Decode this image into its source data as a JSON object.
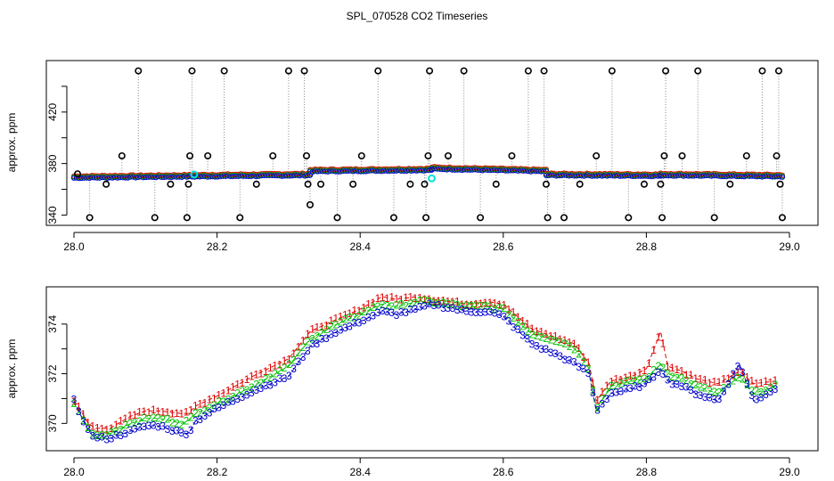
{
  "chart_data": [
    {
      "type": "scatter",
      "title": "SPL_070528  CO2 Timeseries",
      "xlabel": "",
      "ylabel": "approx. ppm",
      "xlim": [
        28.0,
        29.0
      ],
      "ylim": [
        332,
        460
      ],
      "x_ticks": [
        28.0,
        28.2,
        28.4,
        28.6,
        28.8,
        29.0
      ],
      "x_tick_labels": [
        "28.0",
        "28.2",
        "28.4",
        "28.6",
        "28.8",
        "29.0"
      ],
      "y_ticks": [
        340,
        360,
        380,
        400,
        420,
        440
      ],
      "y_tick_labels": [
        "340",
        "",
        "380",
        "",
        "420",
        ""
      ],
      "baseline_segments": [
        {
          "x": [
            28.0,
            28.33
          ],
          "y": [
            369.5,
            371.5
          ]
        },
        {
          "x": [
            28.33,
            28.5
          ],
          "y": [
            374.5,
            375.5
          ]
        },
        {
          "x": [
            28.5,
            28.66
          ],
          "y": [
            376.5,
            374.5
          ]
        },
        {
          "x": [
            28.66,
            28.82
          ],
          "y": [
            371.5,
            371.0
          ]
        },
        {
          "x": [
            28.82,
            28.99
          ],
          "y": [
            371.5,
            370.5
          ]
        }
      ],
      "outliers": [
        {
          "x": 28.005,
          "y": 372
        },
        {
          "x": 28.022,
          "y": 338
        },
        {
          "x": 28.045,
          "y": 364
        },
        {
          "x": 28.067,
          "y": 386
        },
        {
          "x": 28.09,
          "y": 452
        },
        {
          "x": 28.113,
          "y": 338
        },
        {
          "x": 28.135,
          "y": 364
        },
        {
          "x": 28.158,
          "y": 338
        },
        {
          "x": 28.16,
          "y": 364
        },
        {
          "x": 28.162,
          "y": 386
        },
        {
          "x": 28.165,
          "y": 452
        },
        {
          "x": 28.187,
          "y": 386
        },
        {
          "x": 28.21,
          "y": 452
        },
        {
          "x": 28.232,
          "y": 338
        },
        {
          "x": 28.255,
          "y": 364
        },
        {
          "x": 28.278,
          "y": 386
        },
        {
          "x": 28.3,
          "y": 452
        },
        {
          "x": 28.322,
          "y": 452
        },
        {
          "x": 28.325,
          "y": 386
        },
        {
          "x": 28.327,
          "y": 364
        },
        {
          "x": 28.33,
          "y": 348
        },
        {
          "x": 28.345,
          "y": 364
        },
        {
          "x": 28.368,
          "y": 338
        },
        {
          "x": 28.39,
          "y": 364
        },
        {
          "x": 28.402,
          "y": 386
        },
        {
          "x": 28.425,
          "y": 452
        },
        {
          "x": 28.447,
          "y": 338
        },
        {
          "x": 28.47,
          "y": 364
        },
        {
          "x": 28.49,
          "y": 364
        },
        {
          "x": 28.492,
          "y": 338
        },
        {
          "x": 28.495,
          "y": 386
        },
        {
          "x": 28.497,
          "y": 452
        },
        {
          "x": 28.523,
          "y": 386
        },
        {
          "x": 28.545,
          "y": 452
        },
        {
          "x": 28.568,
          "y": 338
        },
        {
          "x": 28.59,
          "y": 364
        },
        {
          "x": 28.612,
          "y": 386
        },
        {
          "x": 28.635,
          "y": 452
        },
        {
          "x": 28.657,
          "y": 452
        },
        {
          "x": 28.66,
          "y": 364
        },
        {
          "x": 28.662,
          "y": 338
        },
        {
          "x": 28.685,
          "y": 338
        },
        {
          "x": 28.707,
          "y": 364
        },
        {
          "x": 28.73,
          "y": 386
        },
        {
          "x": 28.752,
          "y": 452
        },
        {
          "x": 28.775,
          "y": 338
        },
        {
          "x": 28.797,
          "y": 364
        },
        {
          "x": 28.82,
          "y": 364
        },
        {
          "x": 28.822,
          "y": 338
        },
        {
          "x": 28.825,
          "y": 386
        },
        {
          "x": 28.827,
          "y": 452
        },
        {
          "x": 28.85,
          "y": 386
        },
        {
          "x": 28.872,
          "y": 452
        },
        {
          "x": 28.895,
          "y": 338
        },
        {
          "x": 28.917,
          "y": 364
        },
        {
          "x": 28.94,
          "y": 386
        },
        {
          "x": 28.962,
          "y": 452
        },
        {
          "x": 28.982,
          "y": 386
        },
        {
          "x": 28.985,
          "y": 452
        },
        {
          "x": 28.987,
          "y": 364
        },
        {
          "x": 28.99,
          "y": 338
        }
      ],
      "highlights": [
        {
          "x": 28.168,
          "y": 371.5
        },
        {
          "x": 28.5,
          "y": 368.5
        }
      ]
    },
    {
      "type": "line",
      "title": "",
      "xlabel": "",
      "ylabel": "approx. ppm",
      "xlim": [
        28.0,
        29.0
      ],
      "ylim": [
        368.9,
        375.5
      ],
      "x_ticks": [
        28.0,
        28.2,
        28.4,
        28.6,
        28.8,
        29.0
      ],
      "x_tick_labels": [
        "28.0",
        "28.2",
        "28.4",
        "28.6",
        "28.8",
        "29.0"
      ],
      "y_ticks": [
        370,
        371,
        372,
        373,
        374
      ],
      "y_tick_labels": [
        "370",
        "",
        "372",
        "",
        "374"
      ],
      "series": [
        {
          "name": "1",
          "color": "#e00000",
          "x": [
            28.0,
            28.01,
            28.02,
            28.03,
            28.05,
            28.08,
            28.1,
            28.12,
            28.15,
            28.16,
            28.17,
            28.2,
            28.25,
            28.3,
            28.33,
            28.36,
            28.4,
            28.43,
            28.45,
            28.48,
            28.5,
            28.55,
            28.58,
            28.6,
            28.64,
            28.68,
            28.7,
            28.72,
            28.73,
            28.75,
            28.78,
            28.8,
            28.82,
            28.83,
            28.85,
            28.87,
            28.9,
            28.93,
            28.95,
            28.98
          ],
          "y": [
            370.9,
            370.5,
            370.0,
            369.8,
            369.8,
            370.3,
            370.5,
            370.5,
            370.4,
            370.4,
            370.7,
            371.1,
            371.9,
            372.6,
            373.7,
            374.1,
            374.6,
            375.1,
            375.0,
            375.1,
            375.0,
            374.8,
            374.9,
            374.8,
            373.8,
            373.4,
            373.2,
            372.4,
            370.9,
            371.7,
            371.9,
            372.2,
            373.7,
            372.3,
            372.1,
            371.8,
            371.6,
            372.1,
            371.6,
            371.7
          ]
        },
        {
          "name": "2",
          "color": "#00c000",
          "x": [
            28.0,
            28.01,
            28.02,
            28.03,
            28.05,
            28.08,
            28.1,
            28.12,
            28.15,
            28.16,
            28.17,
            28.2,
            28.25,
            28.3,
            28.33,
            28.36,
            28.4,
            28.43,
            28.45,
            28.48,
            28.5,
            28.55,
            28.58,
            28.6,
            28.64,
            28.68,
            28.7,
            28.72,
            28.73,
            28.75,
            28.78,
            28.8,
            28.82,
            28.83,
            28.85,
            28.87,
            28.9,
            28.93,
            28.95,
            28.98
          ],
          "y": [
            370.8,
            370.3,
            369.8,
            369.5,
            369.6,
            370.0,
            370.2,
            370.2,
            370.0,
            370.1,
            370.4,
            370.8,
            371.5,
            372.3,
            373.4,
            373.9,
            374.4,
            374.8,
            374.7,
            374.9,
            374.9,
            374.7,
            374.7,
            374.6,
            373.6,
            373.3,
            373.0,
            372.2,
            370.6,
            371.5,
            371.7,
            371.8,
            372.4,
            372.0,
            371.8,
            371.5,
            371.2,
            371.9,
            371.2,
            371.5
          ]
        },
        {
          "name": "3",
          "color": "#0000cc",
          "x": [
            28.0,
            28.01,
            28.02,
            28.03,
            28.05,
            28.08,
            28.1,
            28.12,
            28.15,
            28.16,
            28.17,
            28.2,
            28.25,
            28.3,
            28.33,
            28.36,
            28.4,
            28.43,
            28.45,
            28.48,
            28.5,
            28.55,
            28.58,
            28.6,
            28.64,
            28.68,
            28.7,
            28.72,
            28.73,
            28.75,
            28.78,
            28.8,
            28.82,
            28.83,
            28.85,
            28.87,
            28.9,
            28.93,
            28.95,
            28.98
          ],
          "y": [
            370.9,
            370.3,
            369.7,
            369.4,
            369.4,
            369.7,
            369.9,
            369.9,
            369.6,
            369.6,
            370.1,
            370.6,
            371.3,
            371.9,
            373.1,
            373.6,
            374.1,
            374.5,
            374.4,
            374.6,
            374.8,
            374.5,
            374.5,
            374.3,
            373.2,
            372.7,
            372.4,
            372.0,
            370.5,
            371.2,
            371.4,
            371.6,
            372.2,
            371.7,
            371.5,
            371.2,
            370.9,
            372.4,
            370.9,
            371.4
          ]
        }
      ]
    }
  ]
}
